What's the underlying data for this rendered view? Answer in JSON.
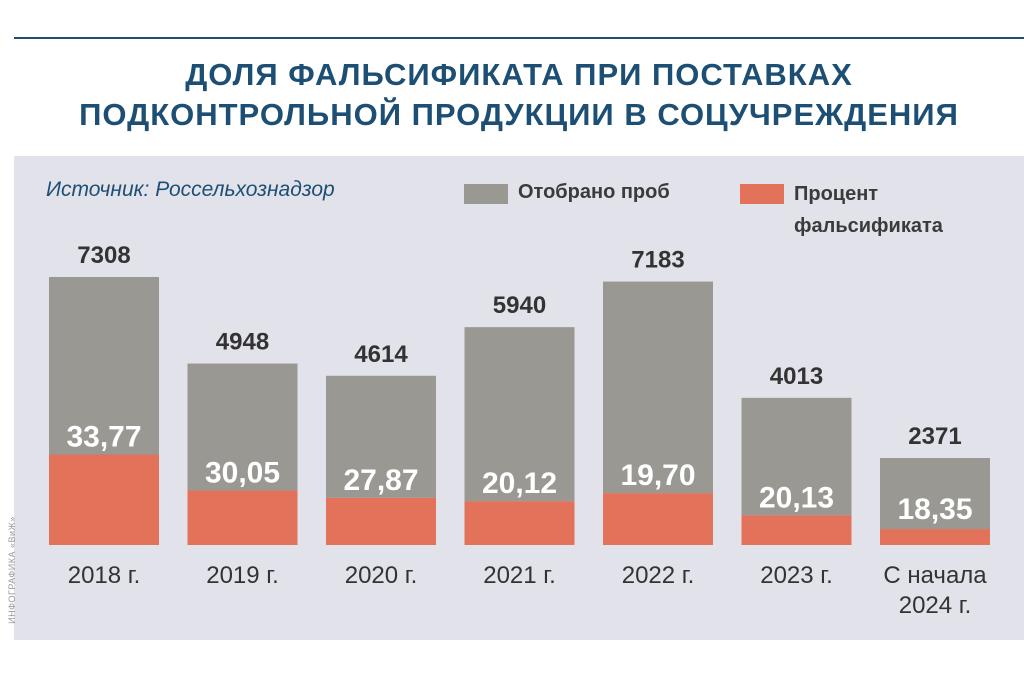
{
  "title_lines": [
    "ДОЛЯ ФАЛЬСИФИКАТА ПРИ ПОСТАВКАХ",
    "ПОДКОНТРОЛЬНОЙ ПРОДУКЦИИ В СОЦУЧРЕЖДЕНИЯ"
  ],
  "source": "Источник: Россельхознадзор",
  "credit": "ИНФОГРАФИКА «ВиЖ»",
  "colors": {
    "primary": "#1d4f75",
    "samples": "#999892",
    "falsified": "#e2725a",
    "panel": "#e2e2ea"
  },
  "chart_data": {
    "type": "bar",
    "categories": [
      "2018 г.",
      "2019 г.",
      "2020 г.",
      "2021 г.",
      "2022 г.",
      "2023 г.",
      "С начала 2024 г."
    ],
    "series": [
      {
        "name": "Отобрано проб",
        "values": [
          7308,
          4948,
          4614,
          5940,
          7183,
          4013,
          2371
        ],
        "labels": [
          "7308",
          "4948",
          "4614",
          "5940",
          "7183",
          "4013",
          "2371"
        ]
      },
      {
        "name": "Процент фальсификата",
        "values": [
          33.77,
          30.05,
          27.87,
          20.12,
          19.7,
          20.13,
          18.35
        ],
        "labels": [
          "33,77",
          "30,05",
          "27,87",
          "20,12",
          "19,70",
          "20,13",
          "18,35"
        ]
      }
    ],
    "title": "ДОЛЯ ФАЛЬСИФИКАТА ПРИ ПОСТАВКАХ ПОДКОНТРОЛЬНОЙ ПРОДУКЦИИ В СОЦУЧРЕЖДЕНИЯ",
    "legend_position": "top-right",
    "grid": false
  }
}
